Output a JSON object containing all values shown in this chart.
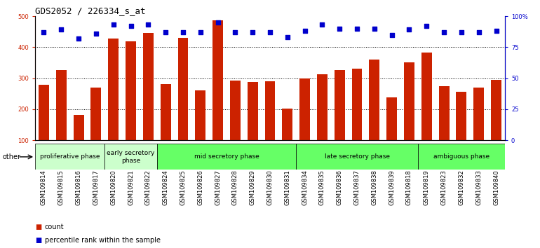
{
  "title": "GDS2052 / 226334_s_at",
  "samples": [
    "GSM109814",
    "GSM109815",
    "GSM109816",
    "GSM109817",
    "GSM109820",
    "GSM109821",
    "GSM109822",
    "GSM109824",
    "GSM109825",
    "GSM109826",
    "GSM109827",
    "GSM109828",
    "GSM109829",
    "GSM109830",
    "GSM109831",
    "GSM109834",
    "GSM109835",
    "GSM109836",
    "GSM109837",
    "GSM109838",
    "GSM109839",
    "GSM109818",
    "GSM109819",
    "GSM109823",
    "GSM109832",
    "GSM109833",
    "GSM109840"
  ],
  "counts": [
    278,
    325,
    182,
    270,
    428,
    418,
    445,
    280,
    430,
    260,
    487,
    293,
    288,
    290,
    202,
    300,
    312,
    325,
    330,
    360,
    238,
    350,
    382,
    275,
    255,
    270,
    295
  ],
  "percentiles": [
    87,
    89,
    82,
    86,
    93,
    92,
    93,
    87,
    87,
    87,
    95,
    87,
    87,
    87,
    83,
    88,
    93,
    90,
    90,
    90,
    85,
    89,
    92,
    87,
    87,
    87,
    88
  ],
  "phase_list": [
    {
      "label": "proliferative phase",
      "start": 0,
      "end": 4,
      "color": "#ccffcc"
    },
    {
      "label": "early secretory\nphase",
      "start": 4,
      "end": 7,
      "color": "#ccffcc"
    },
    {
      "label": "mid secretory phase",
      "start": 7,
      "end": 15,
      "color": "#66ff66"
    },
    {
      "label": "late secretory phase",
      "start": 15,
      "end": 22,
      "color": "#66ff66"
    },
    {
      "label": "ambiguous phase",
      "start": 22,
      "end": 27,
      "color": "#66ff66"
    }
  ],
  "bar_color": "#cc2200",
  "dot_color": "#0000cc",
  "ylim_left": [
    100,
    500
  ],
  "ylim_right": [
    0,
    100
  ],
  "yticks_left": [
    100,
    200,
    300,
    400,
    500
  ],
  "yticks_right": [
    0,
    25,
    50,
    75,
    100
  ],
  "right_tick_labels": [
    "0",
    "25",
    "50",
    "75",
    "100%"
  ],
  "grid_values": [
    200,
    300,
    400
  ],
  "bar_width": 0.6,
  "title_fontsize": 9,
  "tick_fontsize": 6,
  "label_fontsize": 7,
  "phase_label_fontsize": 6.5,
  "other_label": "other",
  "legend_count_label": "count",
  "legend_pct_label": "percentile rank within the sample"
}
